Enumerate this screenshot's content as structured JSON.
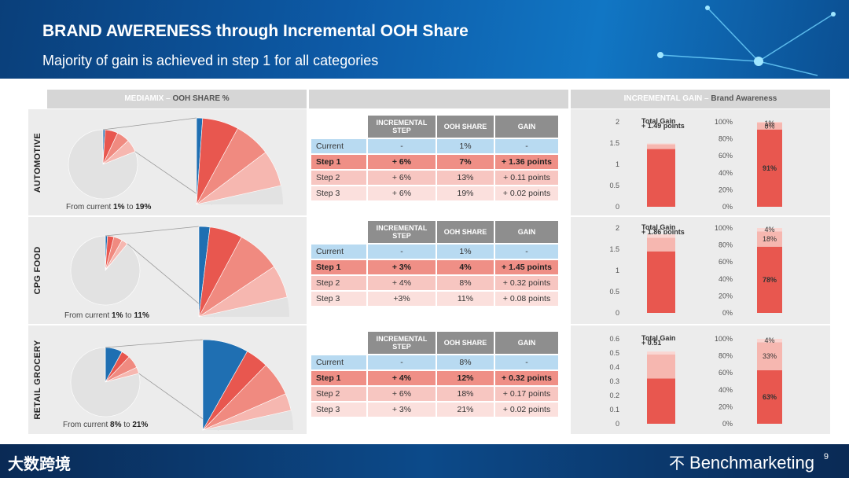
{
  "header": {
    "title": "BRAND AWERENESS through Incremental OOH Share",
    "subtitle": "Majority of gain is achieved in step 1 for all categories"
  },
  "columns": {
    "mediamix": "MEDIAMIX",
    "ooh_share": "OOH SHARE %",
    "incremental_gain": "INCREMENTAL GAIN",
    "brand_awareness": "Brand Awareness"
  },
  "table_headers": [
    "INCREMENTAL STEP",
    "OOH SHARE",
    "GAIN"
  ],
  "from_template": {
    "prefix": "From current ",
    "mid": " to "
  },
  "footer": {
    "left_logo": "大数跨境",
    "brand": "Benchmarketing",
    "mark": "不",
    "page": "9"
  },
  "colors": {
    "blue": "#1f6fb2",
    "red1": "#e8574f",
    "red2": "#f08a80",
    "red3": "#f6b7b0",
    "red4": "#fad6d2",
    "grey": "#e2e2e2"
  },
  "chart_data": [
    {
      "category": "AUTOMOTIVE",
      "type": "pie",
      "from": "1%",
      "to": "19%",
      "pie_values": [
        1,
        6,
        6,
        6,
        81
      ],
      "table": [
        {
          "label": "Current",
          "step": "-",
          "share": "1%",
          "gain": "-"
        },
        {
          "label": "Step 1",
          "step": "+ 6%",
          "share": "7%",
          "gain": "+ 1.36 points"
        },
        {
          "label": "Step 2",
          "step": "+ 6%",
          "share": "13%",
          "gain": "+ 0.11 points"
        },
        {
          "label": "Step 3",
          "step": "+ 6%",
          "share": "19%",
          "gain": "+ 0.02 points"
        }
      ],
      "gain_chart": {
        "type": "bar",
        "total_label": "Total Gain",
        "total_value": "+ 1.49 points",
        "ylim": [
          0,
          2
        ],
        "ticks": [
          "0",
          "0.5",
          "1",
          "1.5",
          "2"
        ],
        "stack": [
          1.36,
          0.11,
          0.02
        ]
      },
      "pct_chart": {
        "type": "bar",
        "ticks": [
          "0%",
          "20%",
          "40%",
          "60%",
          "80%",
          "100%"
        ],
        "stack": [
          91,
          8,
          1
        ],
        "labels": [
          "91%",
          "8%",
          "1%"
        ]
      }
    },
    {
      "category": "CPG FOOD",
      "type": "pie",
      "from": "1%",
      "to": "11%",
      "pie_values": [
        1,
        3,
        4,
        3,
        89
      ],
      "table": [
        {
          "label": "Current",
          "step": "-",
          "share": "1%",
          "gain": "-"
        },
        {
          "label": "Step 1",
          "step": "+ 3%",
          "share": "4%",
          "gain": "+ 1.45 points"
        },
        {
          "label": "Step 2",
          "step": "+ 4%",
          "share": "8%",
          "gain": "+ 0.32 points"
        },
        {
          "label": "Step 3",
          "step": "+3%",
          "share": "11%",
          "gain": "+ 0.08 points"
        }
      ],
      "gain_chart": {
        "type": "bar",
        "total_label": "Total Gain",
        "total_value": "+ 1.86 points",
        "ylim": [
          0,
          2
        ],
        "ticks": [
          "0",
          "0.5",
          "1",
          "1.5",
          "2"
        ],
        "stack": [
          1.45,
          0.32,
          0.08
        ]
      },
      "pct_chart": {
        "type": "bar",
        "ticks": [
          "0%",
          "20%",
          "40%",
          "60%",
          "80%",
          "100%"
        ],
        "stack": [
          78,
          18,
          4
        ],
        "labels": [
          "78%",
          "18%",
          "4%"
        ]
      }
    },
    {
      "category": "RETAIL GROCERY",
      "type": "pie",
      "from": "8%",
      "to": "21%",
      "pie_values": [
        8,
        4,
        6,
        3,
        79
      ],
      "table": [
        {
          "label": "Current",
          "step": "-",
          "share": "8%",
          "gain": "-"
        },
        {
          "label": "Step 1",
          "step": "+ 4%",
          "share": "12%",
          "gain": "+ 0.32 points"
        },
        {
          "label": "Step 2",
          "step": "+ 6%",
          "share": "18%",
          "gain": "+ 0.17 points"
        },
        {
          "label": "Step 3",
          "step": "+ 3%",
          "share": "21%",
          "gain": "+ 0.02 points"
        }
      ],
      "gain_chart": {
        "type": "bar",
        "total_label": "Total Gain",
        "total_value": "+ 0.51",
        "ylim": [
          0,
          0.6
        ],
        "ticks": [
          "0",
          "0.1",
          "0.2",
          "0.3",
          "0.4",
          "0.5",
          "0.6"
        ],
        "stack": [
          0.32,
          0.17,
          0.02
        ]
      },
      "pct_chart": {
        "type": "bar",
        "ticks": [
          "0%",
          "20%",
          "40%",
          "60%",
          "80%",
          "100%"
        ],
        "stack": [
          63,
          33,
          4
        ],
        "labels": [
          "63%",
          "33%",
          "4%"
        ]
      }
    }
  ]
}
